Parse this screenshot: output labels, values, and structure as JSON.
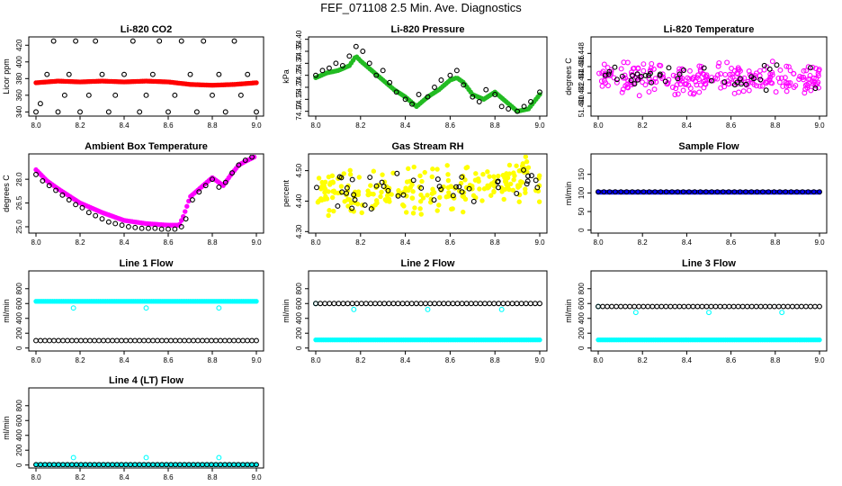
{
  "page": {
    "title": "FEF_071108  2.5 Min. Ave. Diagnostics"
  },
  "colors": {
    "axis": "#000000",
    "red": "#ff0000",
    "green": "#22bb22",
    "magenta": "#ff00ff",
    "yellow": "#ffff00",
    "blue": "#0000ff",
    "cyan": "#00ffff",
    "black": "#000000"
  },
  "chart_data": [
    {
      "id": "co2",
      "type": "scatter",
      "title": "Li-820 CO2",
      "ylabel": "Licor ppm",
      "xlim": [
        8.0,
        9.0
      ],
      "ylim": [
        335,
        430
      ],
      "xticks": [
        8.0,
        8.2,
        8.4,
        8.6,
        8.8,
        9.0
      ],
      "xtick_labels": [
        "8.0",
        "8.2",
        "8.4",
        "8.6",
        "8.8",
        "9.0"
      ],
      "yticks": [
        340,
        360,
        380,
        400,
        420
      ],
      "ytick_labels": [
        "340",
        "360",
        "380",
        "400",
        "420"
      ],
      "series": [
        {
          "name": "licor-co2",
          "color": "red",
          "style": "dense",
          "marker": "filled",
          "x": [
            8.0,
            8.1,
            8.2,
            8.3,
            8.4,
            8.5,
            8.6,
            8.7,
            8.8,
            8.9,
            9.0
          ],
          "y": [
            375,
            377,
            376,
            377,
            376,
            377,
            376,
            373,
            372,
            373,
            375
          ]
        },
        {
          "name": "reference-co2",
          "color": "black",
          "marker": "open",
          "x": [
            8.0,
            8.02,
            8.05,
            8.08,
            8.1,
            8.13,
            8.15,
            8.18,
            8.2,
            8.24,
            8.27,
            8.3,
            8.33,
            8.36,
            8.4,
            8.44,
            8.47,
            8.5,
            8.53,
            8.56,
            8.6,
            8.63,
            8.66,
            8.7,
            8.73,
            8.76,
            8.8,
            8.83,
            8.86,
            8.9,
            8.93,
            8.96,
            9.0
          ],
          "y": [
            340,
            350,
            385,
            425,
            340,
            360,
            385,
            425,
            340,
            360,
            425,
            385,
            340,
            360,
            385,
            425,
            340,
            360,
            385,
            425,
            340,
            360,
            425,
            385,
            340,
            425,
            360,
            385,
            340,
            425,
            360,
            385,
            340
          ]
        }
      ]
    },
    {
      "id": "pressure",
      "type": "scatter",
      "title": "Li-820 Pressure",
      "ylabel": "kPa",
      "xlim": [
        8.0,
        9.0
      ],
      "ylim": [
        74.08,
        74.41
      ],
      "xticks": [
        8.0,
        8.2,
        8.4,
        8.6,
        8.8,
        9.0
      ],
      "xtick_labels": [
        "8.0",
        "8.2",
        "8.4",
        "8.6",
        "8.8",
        "9.0"
      ],
      "yticks": [
        74.1,
        74.15,
        74.2,
        74.25,
        74.3,
        74.35,
        74.4
      ],
      "ytick_labels": [
        "74.10",
        "74.15",
        "74.20",
        "74.25",
        "74.30",
        "74.35",
        "74.40"
      ],
      "series": [
        {
          "name": "licor-pressure",
          "color": "green",
          "style": "dense",
          "marker": "filled",
          "x": [
            8.0,
            8.05,
            8.1,
            8.15,
            8.18,
            8.2,
            8.25,
            8.3,
            8.35,
            8.4,
            8.45,
            8.5,
            8.55,
            8.6,
            8.63,
            8.66,
            8.7,
            8.75,
            8.8,
            8.85,
            8.9,
            8.95,
            9.0
          ],
          "y": [
            74.24,
            74.26,
            74.27,
            74.29,
            74.33,
            74.31,
            74.27,
            74.23,
            74.19,
            74.16,
            74.12,
            74.16,
            74.19,
            74.23,
            74.24,
            74.22,
            74.17,
            74.15,
            74.18,
            74.14,
            74.1,
            74.11,
            74.17
          ]
        },
        {
          "name": "reference-pressure",
          "color": "black",
          "marker": "open",
          "x": [
            8.0,
            8.03,
            8.06,
            8.09,
            8.12,
            8.15,
            8.18,
            8.21,
            8.24,
            8.27,
            8.3,
            8.33,
            8.36,
            8.4,
            8.43,
            8.46,
            8.5,
            8.53,
            8.56,
            8.6,
            8.63,
            8.66,
            8.7,
            8.73,
            8.76,
            8.8,
            8.83,
            8.86,
            8.9,
            8.93,
            8.96,
            9.0
          ],
          "y": [
            74.25,
            74.27,
            74.28,
            74.3,
            74.29,
            74.33,
            74.37,
            74.35,
            74.3,
            74.25,
            74.27,
            74.22,
            74.18,
            74.15,
            74.13,
            74.17,
            74.16,
            74.2,
            74.23,
            74.25,
            74.27,
            74.21,
            74.16,
            74.14,
            74.19,
            74.17,
            74.12,
            74.11,
            74.1,
            74.12,
            74.14,
            74.18
          ]
        }
      ]
    },
    {
      "id": "licor-temp",
      "type": "scatter",
      "title": "Li-820 Temperature",
      "ylabel": "degrees C",
      "xlim": [
        8.0,
        9.0
      ],
      "ylim": [
        51.4385,
        51.4505
      ],
      "xticks": [
        8.0,
        8.2,
        8.4,
        8.6,
        8.8,
        9.0
      ],
      "xtick_labels": [
        "8.0",
        "8.2",
        "8.4",
        "8.6",
        "8.8",
        "9.0"
      ],
      "yticks": [
        51.44,
        51.442,
        51.444,
        51.446,
        51.448
      ],
      "ytick_labels": [
        "51.440",
        "51.442",
        "51.444",
        "51.446",
        "51.448"
      ],
      "series": [
        {
          "name": "licor-temperature",
          "color": "magenta",
          "style": "noise",
          "marker": "open",
          "x": [
            8.0,
            9.0
          ],
          "y": [
            51.4443,
            51.4443
          ],
          "spread": 0.0028,
          "count": 260,
          "seed": 7
        },
        {
          "name": "reference-temperature",
          "color": "black",
          "style": "noise",
          "marker": "open",
          "x": [
            8.0,
            9.0
          ],
          "y": [
            51.4445,
            51.4445
          ],
          "spread": 0.0025,
          "count": 40,
          "seed": 11
        }
      ]
    },
    {
      "id": "box-temp",
      "type": "scatter",
      "title": "Ambient Box Temperature",
      "ylabel": "degrees C",
      "xlim": [
        8.0,
        9.0
      ],
      "ylim": [
        24.6,
        29.6
      ],
      "xticks": [
        8.0,
        8.2,
        8.4,
        8.6,
        8.8,
        9.0
      ],
      "xtick_labels": [
        "8.0",
        "8.2",
        "8.4",
        "8.6",
        "8.8",
        "9.0"
      ],
      "yticks": [
        25.0,
        26.5,
        28.0
      ],
      "ytick_labels": [
        "25.0",
        "26.5",
        "28.0"
      ],
      "series": [
        {
          "name": "box-temperature",
          "color": "magenta",
          "style": "dense",
          "marker": "filled",
          "x": [
            8.0,
            8.05,
            8.1,
            8.2,
            8.3,
            8.4,
            8.5,
            8.6,
            8.65,
            8.67,
            8.7,
            8.75,
            8.8,
            8.85,
            8.88,
            8.92,
            8.96,
            8.99
          ],
          "y": [
            28.6,
            27.9,
            27.4,
            26.5,
            25.9,
            25.4,
            25.2,
            25.1,
            25.1,
            25.7,
            26.9,
            27.5,
            28.1,
            27.6,
            28.2,
            28.9,
            29.2,
            29.4
          ]
        },
        {
          "name": "reference-box-temperature",
          "color": "black",
          "marker": "open",
          "x": [
            8.0,
            8.03,
            8.06,
            8.09,
            8.12,
            8.15,
            8.18,
            8.21,
            8.24,
            8.27,
            8.3,
            8.33,
            8.36,
            8.39,
            8.42,
            8.45,
            8.48,
            8.51,
            8.54,
            8.57,
            8.6,
            8.63,
            8.66,
            8.68,
            8.71,
            8.74,
            8.77,
            8.8,
            8.83,
            8.86,
            8.89,
            8.92,
            8.95,
            8.98
          ],
          "y": [
            28.3,
            27.9,
            27.6,
            27.3,
            27.0,
            26.7,
            26.4,
            26.2,
            25.9,
            25.7,
            25.5,
            25.3,
            25.2,
            25.1,
            25.0,
            24.95,
            24.9,
            24.9,
            24.9,
            24.85,
            24.85,
            24.85,
            25.0,
            25.5,
            26.7,
            27.2,
            27.6,
            28.0,
            27.5,
            27.8,
            28.4,
            28.9,
            29.2,
            29.4
          ]
        }
      ]
    },
    {
      "id": "rh",
      "type": "scatter",
      "title": "Gas Stream RH",
      "ylabel": "percent",
      "xlim": [
        8.0,
        9.0
      ],
      "ylim": [
        4.295,
        4.555
      ],
      "xticks": [
        8.0,
        8.2,
        8.4,
        8.6,
        8.8,
        9.0
      ],
      "xtick_labels": [
        "8.0",
        "8.2",
        "8.4",
        "8.6",
        "8.8",
        "9.0"
      ],
      "yticks": [
        4.3,
        4.4,
        4.5
      ],
      "ytick_labels": [
        "4.30",
        "4.40",
        "4.50"
      ],
      "series": [
        {
          "name": "gas-rh",
          "color": "yellow",
          "style": "noise",
          "marker": "filled",
          "x": [
            8.0,
            8.5,
            9.0
          ],
          "y": [
            4.43,
            4.43,
            4.48
          ],
          "spread": 0.09,
          "count": 240,
          "seed": 23
        },
        {
          "name": "reference-rh",
          "color": "black",
          "style": "noise",
          "marker": "open",
          "x": [
            8.0,
            8.5,
            9.0
          ],
          "y": [
            4.44,
            4.43,
            4.47
          ],
          "spread": 0.07,
          "count": 45,
          "seed": 31
        }
      ]
    },
    {
      "id": "sample-flow",
      "type": "scatter",
      "title": "Sample Flow",
      "ylabel": "ml/min",
      "xlim": [
        8.0,
        9.0
      ],
      "ylim": [
        -8,
        205
      ],
      "xticks": [
        8.0,
        8.2,
        8.4,
        8.6,
        8.8,
        9.0
      ],
      "xtick_labels": [
        "8.0",
        "8.2",
        "8.4",
        "8.6",
        "8.8",
        "9.0"
      ],
      "yticks": [
        0,
        50,
        100,
        150
      ],
      "ytick_labels": [
        "0",
        "50",
        "100",
        "150"
      ],
      "series": [
        {
          "name": "sample-flow",
          "color": "blue",
          "style": "dense",
          "marker": "filled",
          "x": [
            8.0,
            9.0
          ],
          "y": [
            102,
            102
          ]
        },
        {
          "name": "reference-sample-flow",
          "color": "black",
          "style": "line-markers",
          "marker": "open",
          "x": [
            8.0,
            9.0
          ],
          "y": [
            103,
            103
          ],
          "count": 40
        }
      ]
    },
    {
      "id": "line1",
      "type": "scatter",
      "title": "Line 1 Flow",
      "ylabel": "ml/min",
      "xlim": [
        8.0,
        9.0
      ],
      "ylim": [
        -40,
        1040
      ],
      "xticks": [
        8.0,
        8.2,
        8.4,
        8.6,
        8.8,
        9.0
      ],
      "xtick_labels": [
        "8.0",
        "8.2",
        "8.4",
        "8.6",
        "8.8",
        "9.0"
      ],
      "yticks": [
        0,
        200,
        400,
        600,
        800
      ],
      "ytick_labels": [
        "0",
        "200",
        "400",
        "600",
        "800"
      ],
      "series": [
        {
          "name": "line1-flow",
          "color": "cyan",
          "style": "dense",
          "marker": "filled",
          "x": [
            8.0,
            9.0
          ],
          "y": [
            630,
            630
          ]
        },
        {
          "name": "line1-outliers",
          "color": "cyan",
          "marker": "open",
          "x": [
            8.17,
            8.5,
            8.83
          ],
          "y": [
            540,
            540,
            540
          ]
        },
        {
          "name": "line1-reference",
          "color": "black",
          "style": "line-markers",
          "marker": "open",
          "x": [
            8.0,
            9.0
          ],
          "y": [
            100,
            100
          ],
          "count": 50
        }
      ]
    },
    {
      "id": "line2",
      "type": "scatter",
      "title": "Line 2 Flow",
      "ylabel": "ml/min",
      "xlim": [
        8.0,
        9.0
      ],
      "ylim": [
        -40,
        1040
      ],
      "xticks": [
        8.0,
        8.2,
        8.4,
        8.6,
        8.8,
        9.0
      ],
      "xtick_labels": [
        "8.0",
        "8.2",
        "8.4",
        "8.6",
        "8.8",
        "9.0"
      ],
      "yticks": [
        0,
        200,
        400,
        600,
        800
      ],
      "ytick_labels": [
        "0",
        "200",
        "400",
        "600",
        "800"
      ],
      "series": [
        {
          "name": "line2-flow",
          "color": "cyan",
          "style": "dense",
          "marker": "filled",
          "x": [
            8.0,
            9.0
          ],
          "y": [
            110,
            110
          ]
        },
        {
          "name": "line2-outliers",
          "color": "cyan",
          "marker": "open",
          "x": [
            8.0,
            8.17,
            8.5,
            8.83
          ],
          "y": [
            600,
            520,
            520,
            520
          ]
        },
        {
          "name": "line2-reference",
          "color": "black",
          "style": "line-markers",
          "marker": "open",
          "x": [
            8.0,
            9.0
          ],
          "y": [
            600,
            600
          ],
          "count": 50
        }
      ]
    },
    {
      "id": "line3",
      "type": "scatter",
      "title": "Line 3 Flow",
      "ylabel": "ml/min",
      "xlim": [
        8.0,
        9.0
      ],
      "ylim": [
        -40,
        1040
      ],
      "xticks": [
        8.0,
        8.2,
        8.4,
        8.6,
        8.8,
        9.0
      ],
      "xtick_labels": [
        "8.0",
        "8.2",
        "8.4",
        "8.6",
        "8.8",
        "9.0"
      ],
      "yticks": [
        0,
        200,
        400,
        600,
        800
      ],
      "ytick_labels": [
        "0",
        "200",
        "400",
        "600",
        "800"
      ],
      "series": [
        {
          "name": "line3-flow",
          "color": "cyan",
          "style": "dense",
          "marker": "filled",
          "x": [
            8.0,
            9.0
          ],
          "y": [
            110,
            110
          ]
        },
        {
          "name": "line3-outliers",
          "color": "cyan",
          "marker": "open",
          "x": [
            8.0,
            8.17,
            8.5,
            8.83
          ],
          "y": [
            560,
            480,
            480,
            480
          ]
        },
        {
          "name": "line3-reference",
          "color": "black",
          "style": "line-markers",
          "marker": "open",
          "x": [
            8.0,
            9.0
          ],
          "y": [
            560,
            560
          ],
          "count": 50
        }
      ]
    },
    {
      "id": "line4",
      "type": "scatter",
      "title": "Line 4 (LT) Flow",
      "ylabel": "ml/min",
      "xlim": [
        8.0,
        9.0
      ],
      "ylim": [
        -40,
        1040
      ],
      "xticks": [
        8.0,
        8.2,
        8.4,
        8.6,
        8.8,
        9.0
      ],
      "xtick_labels": [
        "8.0",
        "8.2",
        "8.4",
        "8.6",
        "8.8",
        "9.0"
      ],
      "yticks": [
        0,
        200,
        400,
        600,
        800
      ],
      "ytick_labels": [
        "0",
        "200",
        "400",
        "600",
        "800"
      ],
      "series": [
        {
          "name": "line4-flow",
          "color": "cyan",
          "style": "dense",
          "marker": "filled",
          "x": [
            8.0,
            9.0
          ],
          "y": [
            5,
            5
          ]
        },
        {
          "name": "line4-outliers",
          "color": "cyan",
          "marker": "open",
          "x": [
            8.17,
            8.5,
            8.83
          ],
          "y": [
            100,
            100,
            100
          ]
        },
        {
          "name": "line4-reference",
          "color": "black",
          "style": "line-markers",
          "marker": "open",
          "x": [
            8.0,
            9.0
          ],
          "y": [
            5,
            5
          ],
          "count": 50
        }
      ]
    }
  ]
}
